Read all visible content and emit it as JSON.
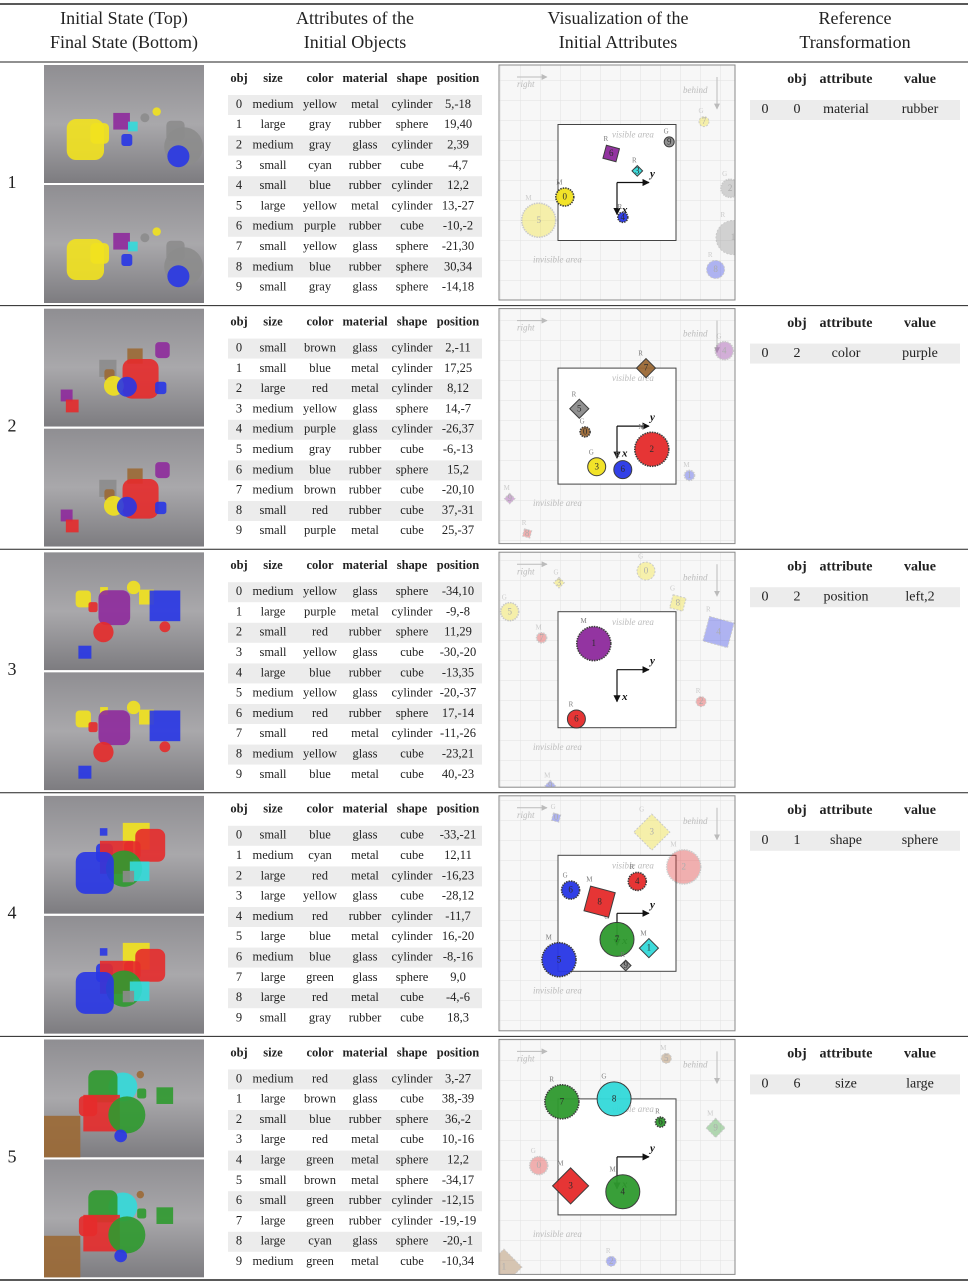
{
  "header": {
    "col1": [
      "Initial State (Top)",
      "Final State (Bottom)"
    ],
    "col2": [
      "Attributes of the",
      "Initial Objects"
    ],
    "col3": [
      "Visualization of the",
      "Initial Attributes"
    ],
    "col4": [
      "Reference",
      "Transformation"
    ]
  },
  "attribute_columns": [
    "obj",
    "size",
    "color",
    "material",
    "shape",
    "position"
  ],
  "reference_columns": [
    "obj",
    "attribute",
    "value"
  ],
  "visualization_labels": {
    "right": "right",
    "behind": "behind",
    "visible": "visible area",
    "invisible": "invisible area",
    "x": "x",
    "y": "y"
  },
  "material_codes": {
    "rubber": "R",
    "glass": "G",
    "metal": "M"
  },
  "examples": [
    {
      "id": "1",
      "objects": [
        [
          "0",
          "medium",
          "yellow",
          "metal",
          "cylinder",
          "5,-18"
        ],
        [
          "1",
          "large",
          "gray",
          "rubber",
          "sphere",
          "19,40"
        ],
        [
          "2",
          "medium",
          "gray",
          "glass",
          "cylinder",
          "2,39"
        ],
        [
          "3",
          "small",
          "cyan",
          "rubber",
          "cube",
          "-4,7"
        ],
        [
          "4",
          "small",
          "blue",
          "rubber",
          "cylinder",
          "12,2"
        ],
        [
          "5",
          "large",
          "yellow",
          "metal",
          "cylinder",
          "13,-27"
        ],
        [
          "6",
          "medium",
          "purple",
          "rubber",
          "cube",
          "-10,-2"
        ],
        [
          "7",
          "small",
          "yellow",
          "glass",
          "sphere",
          "-21,30"
        ],
        [
          "8",
          "medium",
          "blue",
          "rubber",
          "sphere",
          "30,34"
        ],
        [
          "9",
          "small",
          "gray",
          "glass",
          "sphere",
          "-14,18"
        ]
      ],
      "reference": [
        "0",
        "0",
        "material",
        "rubber"
      ]
    },
    {
      "id": "2",
      "objects": [
        [
          "0",
          "small",
          "brown",
          "glass",
          "cylinder",
          "2,-11"
        ],
        [
          "1",
          "small",
          "blue",
          "metal",
          "cylinder",
          "17,25"
        ],
        [
          "2",
          "large",
          "red",
          "metal",
          "cylinder",
          "8,12"
        ],
        [
          "3",
          "medium",
          "yellow",
          "glass",
          "sphere",
          "14,-7"
        ],
        [
          "4",
          "medium",
          "purple",
          "glass",
          "cylinder",
          "-26,37"
        ],
        [
          "5",
          "medium",
          "gray",
          "rubber",
          "cube",
          "-6,-13"
        ],
        [
          "6",
          "medium",
          "blue",
          "rubber",
          "sphere",
          "15,2"
        ],
        [
          "7",
          "medium",
          "brown",
          "rubber",
          "cube",
          "-20,10"
        ],
        [
          "8",
          "small",
          "red",
          "rubber",
          "cube",
          "37,-31"
        ],
        [
          "9",
          "small",
          "purple",
          "metal",
          "cube",
          "25,-37"
        ]
      ],
      "reference": [
        "0",
        "2",
        "color",
        "purple"
      ]
    },
    {
      "id": "3",
      "objects": [
        [
          "0",
          "medium",
          "yellow",
          "glass",
          "sphere",
          "-34,10"
        ],
        [
          "1",
          "large",
          "purple",
          "metal",
          "cylinder",
          "-9,-8"
        ],
        [
          "2",
          "small",
          "red",
          "rubber",
          "sphere",
          "11,29"
        ],
        [
          "3",
          "small",
          "yellow",
          "glass",
          "cube",
          "-30,-20"
        ],
        [
          "4",
          "large",
          "blue",
          "rubber",
          "cube",
          "-13,35"
        ],
        [
          "5",
          "medium",
          "yellow",
          "glass",
          "cylinder",
          "-20,-37"
        ],
        [
          "6",
          "medium",
          "red",
          "rubber",
          "sphere",
          "17,-14"
        ],
        [
          "7",
          "small",
          "red",
          "metal",
          "cylinder",
          "-11,-26"
        ],
        [
          "8",
          "medium",
          "yellow",
          "glass",
          "cube",
          "-23,21"
        ],
        [
          "9",
          "small",
          "blue",
          "metal",
          "cube",
          "40,-23"
        ]
      ],
      "reference": [
        "0",
        "2",
        "position",
        "left,2"
      ]
    },
    {
      "id": "4",
      "objects": [
        [
          "0",
          "small",
          "blue",
          "glass",
          "cube",
          "-33,-21"
        ],
        [
          "1",
          "medium",
          "cyan",
          "metal",
          "cube",
          "12,11"
        ],
        [
          "2",
          "large",
          "red",
          "metal",
          "cylinder",
          "-16,23"
        ],
        [
          "3",
          "large",
          "yellow",
          "glass",
          "cube",
          "-28,12"
        ],
        [
          "4",
          "medium",
          "red",
          "rubber",
          "cylinder",
          "-11,7"
        ],
        [
          "5",
          "large",
          "blue",
          "metal",
          "cylinder",
          "16,-20"
        ],
        [
          "6",
          "medium",
          "blue",
          "glass",
          "cylinder",
          "-8,-16"
        ],
        [
          "7",
          "large",
          "green",
          "glass",
          "sphere",
          "9,0"
        ],
        [
          "8",
          "large",
          "red",
          "metal",
          "cube",
          "-4,-6"
        ],
        [
          "9",
          "small",
          "gray",
          "rubber",
          "cube",
          "18,3"
        ]
      ],
      "reference": [
        "0",
        "1",
        "shape",
        "sphere"
      ]
    },
    {
      "id": "5",
      "objects": [
        [
          "0",
          "medium",
          "red",
          "glass",
          "cylinder",
          "3,-27"
        ],
        [
          "1",
          "large",
          "brown",
          "glass",
          "cube",
          "38,-39"
        ],
        [
          "2",
          "small",
          "blue",
          "rubber",
          "sphere",
          "36,-2"
        ],
        [
          "3",
          "large",
          "red",
          "metal",
          "cube",
          "10,-16"
        ],
        [
          "4",
          "large",
          "green",
          "metal",
          "sphere",
          "12,2"
        ],
        [
          "5",
          "small",
          "brown",
          "metal",
          "sphere",
          "-34,17"
        ],
        [
          "6",
          "small",
          "green",
          "rubber",
          "cylinder",
          "-12,15"
        ],
        [
          "7",
          "large",
          "green",
          "rubber",
          "cylinder",
          "-19,-19"
        ],
        [
          "8",
          "large",
          "cyan",
          "glass",
          "sphere",
          "-20,-1"
        ],
        [
          "9",
          "medium",
          "green",
          "metal",
          "cube",
          "-10,34"
        ]
      ],
      "reference": [
        "0",
        "6",
        "size",
        "large"
      ]
    }
  ]
}
